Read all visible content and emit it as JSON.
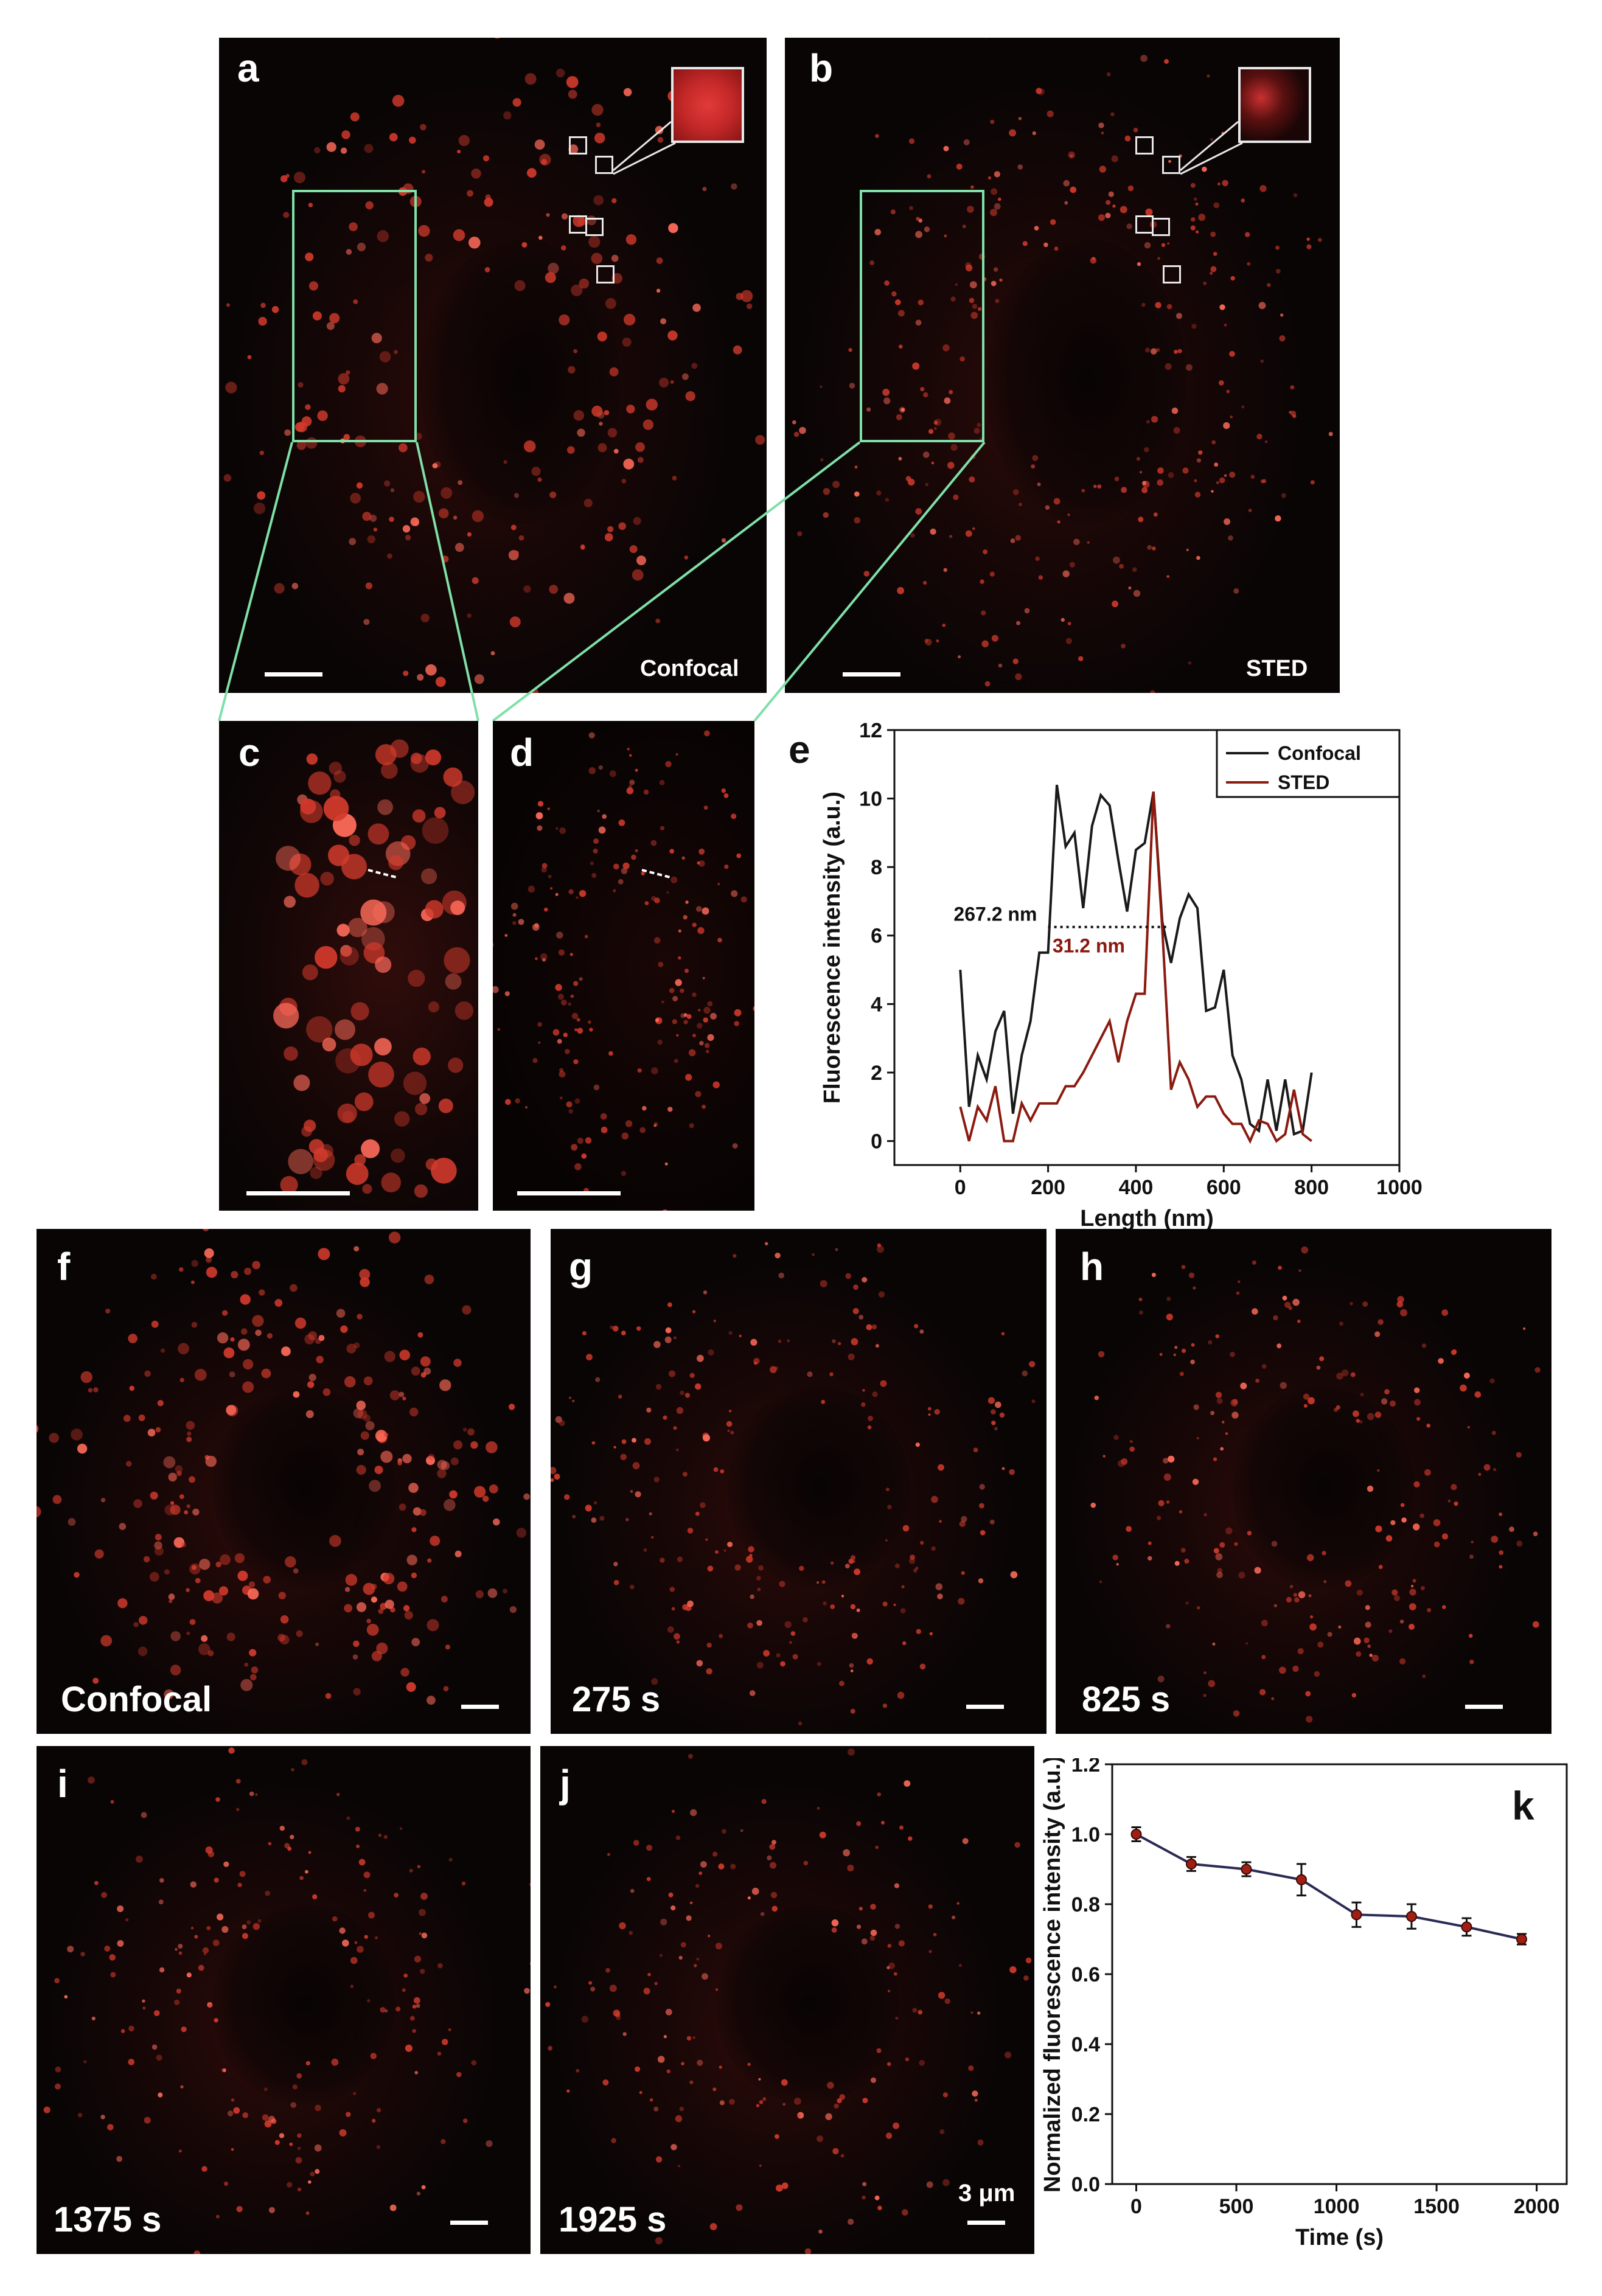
{
  "figure": {
    "panels": {
      "a": {
        "label": "a",
        "caption": "Confocal"
      },
      "b": {
        "label": "b",
        "caption": "STED"
      },
      "c": {
        "label": "c"
      },
      "d": {
        "label": "d"
      },
      "e": {
        "label": "e"
      },
      "f": {
        "label": "f",
        "caption": "Confocal"
      },
      "g": {
        "label": "g",
        "caption": "275 s"
      },
      "h": {
        "label": "h",
        "caption": "825 s"
      },
      "i": {
        "label": "i",
        "caption": "1375 s"
      },
      "j": {
        "label": "j",
        "caption": "1925 s",
        "scalebar_text": "3 μm"
      },
      "k": {
        "label": "k"
      }
    },
    "colors": {
      "confocal_line": "#1a1a1a",
      "sted_line": "#8b1a10",
      "marker": "#a01e14",
      "zoom_box": "#7fe0a8"
    }
  },
  "chart_data": [
    {
      "panel": "e",
      "type": "line",
      "xlabel": "Length (nm)",
      "ylabel": "Fluorescence intensity (a.u.)",
      "xlim": [
        -150,
        1000
      ],
      "ylim": [
        -0.7,
        12
      ],
      "xticks": [
        0,
        200,
        400,
        600,
        800,
        1000
      ],
      "yticks": [
        0,
        2,
        4,
        6,
        8,
        10,
        12
      ],
      "legend_position": "top-right",
      "annotations": [
        {
          "text": "267.2 nm",
          "series": "Confocal"
        },
        {
          "text": "31.2 nm",
          "series": "STED"
        }
      ],
      "series": [
        {
          "name": "Confocal",
          "x": [
            0,
            20,
            40,
            60,
            80,
            100,
            120,
            140,
            160,
            180,
            200,
            220,
            240,
            260,
            280,
            300,
            320,
            340,
            360,
            380,
            400,
            420,
            440,
            460,
            480,
            500,
            520,
            540,
            560,
            580,
            600,
            620,
            640,
            660,
            680,
            700,
            720,
            740,
            760,
            780,
            800
          ],
          "y": [
            5.0,
            1.0,
            2.5,
            1.8,
            3.2,
            3.8,
            0.8,
            2.5,
            3.5,
            5.5,
            5.5,
            10.4,
            8.6,
            9.0,
            6.8,
            9.2,
            10.1,
            9.8,
            8.2,
            6.7,
            8.5,
            8.7,
            10.2,
            6.4,
            5.2,
            6.5,
            7.2,
            6.8,
            3.8,
            3.9,
            5.0,
            2.5,
            1.8,
            0.5,
            0.3,
            1.8,
            0.3,
            1.8,
            0.2,
            0.3,
            2.0
          ]
        },
        {
          "name": "STED",
          "x": [
            0,
            20,
            40,
            60,
            80,
            100,
            120,
            140,
            160,
            180,
            200,
            220,
            240,
            260,
            280,
            300,
            320,
            340,
            360,
            380,
            400,
            420,
            440,
            460,
            480,
            500,
            520,
            540,
            560,
            580,
            600,
            620,
            640,
            660,
            680,
            700,
            720,
            740,
            760,
            780,
            800
          ],
          "y": [
            1.0,
            0.0,
            1.0,
            0.6,
            1.6,
            0.0,
            0.0,
            1.1,
            0.6,
            1.1,
            1.1,
            1.1,
            1.6,
            1.6,
            2.0,
            2.5,
            3.0,
            3.5,
            2.3,
            3.5,
            4.3,
            4.3,
            10.2,
            6.2,
            1.5,
            2.3,
            1.8,
            1.0,
            1.3,
            1.3,
            0.8,
            0.5,
            0.5,
            0.0,
            0.6,
            0.5,
            0.0,
            0.2,
            1.5,
            0.2,
            0.0
          ]
        }
      ]
    },
    {
      "panel": "k",
      "type": "line",
      "xlabel": "Time (s)",
      "ylabel": "Normalized fluorescence intensity (a.u.)",
      "xlim": [
        -120,
        2150
      ],
      "ylim": [
        0,
        1.2
      ],
      "xticks": [
        0,
        500,
        1000,
        1500,
        2000
      ],
      "yticks": [
        0.0,
        0.2,
        0.4,
        0.6,
        0.8,
        1.0,
        1.2
      ],
      "series": [
        {
          "x": [
            0,
            275,
            550,
            825,
            1100,
            1375,
            1650,
            1925
          ],
          "y": [
            1.0,
            0.915,
            0.9,
            0.87,
            0.77,
            0.765,
            0.735,
            0.7
          ],
          "err": [
            0.02,
            0.02,
            0.02,
            0.045,
            0.035,
            0.035,
            0.025,
            0.015
          ]
        }
      ]
    }
  ]
}
